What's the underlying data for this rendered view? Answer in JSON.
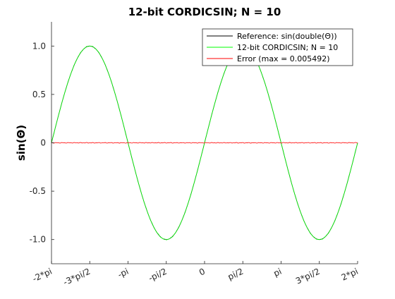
{
  "chart_data": {
    "type": "line",
    "title": "12-bit CORDICSIN; N = 10",
    "xlabel": "",
    "ylabel": "sin(Θ)",
    "xlim": [
      -6.283185307,
      6.283185307
    ],
    "ylim": [
      -1.25,
      1.25
    ],
    "xticks": [
      -6.283185307,
      -4.71238898,
      -3.141592654,
      -1.570796327,
      0,
      1.570796327,
      3.141592654,
      4.71238898,
      6.283185307
    ],
    "xtick_labels": [
      "-2*pi",
      "-3*pi/2",
      "-pi",
      "-pi/2",
      "0",
      "pi/2",
      "pi",
      "3*pi/2",
      "2*pi"
    ],
    "yticks": [
      1.0,
      0.5,
      0,
      -0.5,
      -1.0
    ],
    "ytick_labels": [
      "1.0",
      "0.5",
      "0",
      "-0.5",
      "-1.0"
    ],
    "grid": false,
    "legend_position": "top-right",
    "series": [
      {
        "name": "Reference: sin(double(Θ))",
        "color": "#000000",
        "function": "sin(x)",
        "x_range": [
          -6.283185307,
          6.283185307
        ]
      },
      {
        "name": "12-bit CORDICSIN; N = 10",
        "color": "#00ff00",
        "function": "sin(x) approximated with 12-bit fixed-point CORDIC, N = 10 iterations",
        "x_range": [
          -6.283185307,
          6.283185307
        ]
      },
      {
        "name": "Error (max = 0.005492)",
        "color": "#ff0000",
        "function": "CORDIC approximation minus reference",
        "max_abs_value": 0.005492,
        "x_range": [
          -6.283185307,
          6.283185307
        ]
      }
    ]
  }
}
